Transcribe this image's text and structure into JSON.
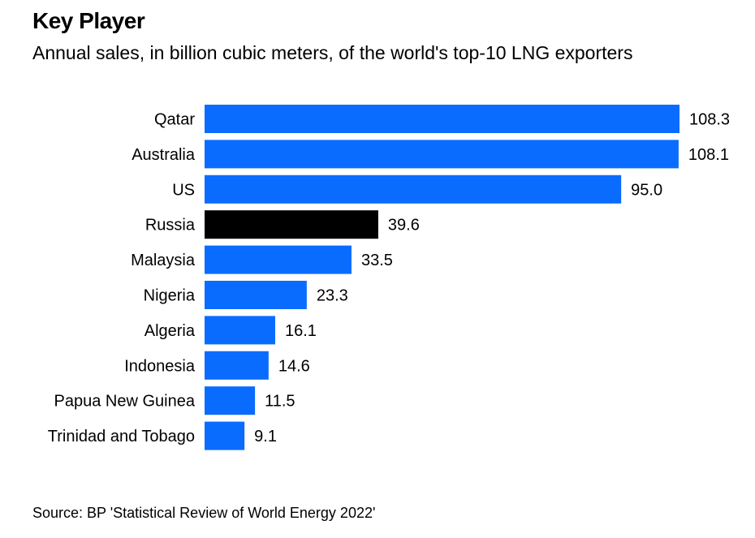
{
  "chart_data": {
    "type": "bar",
    "orientation": "horizontal",
    "title": "Key Player",
    "subtitle": "Annual sales, in billion cubic meters, of the world's top-10 LNG exporters",
    "source": "Source: BP 'Statistical Review of World Energy 2022'",
    "categories": [
      "Qatar",
      "Australia",
      "US",
      "Russia",
      "Malaysia",
      "Nigeria",
      "Algeria",
      "Indonesia",
      "Papua New Guinea",
      "Trinidad and Tobago"
    ],
    "values": [
      108.3,
      108.1,
      95.0,
      39.6,
      33.5,
      23.3,
      16.1,
      14.6,
      11.5,
      9.1
    ],
    "value_labels": [
      "108.3",
      "108.1",
      "95.0",
      "39.6",
      "33.5",
      "23.3",
      "16.1",
      "14.6",
      "11.5",
      "9.1"
    ],
    "highlight": "Russia",
    "colors": {
      "bar": "#0a6cff",
      "highlight": "#000000"
    },
    "xlim": [
      0,
      108.3
    ],
    "grid": false,
    "legend": "none"
  }
}
